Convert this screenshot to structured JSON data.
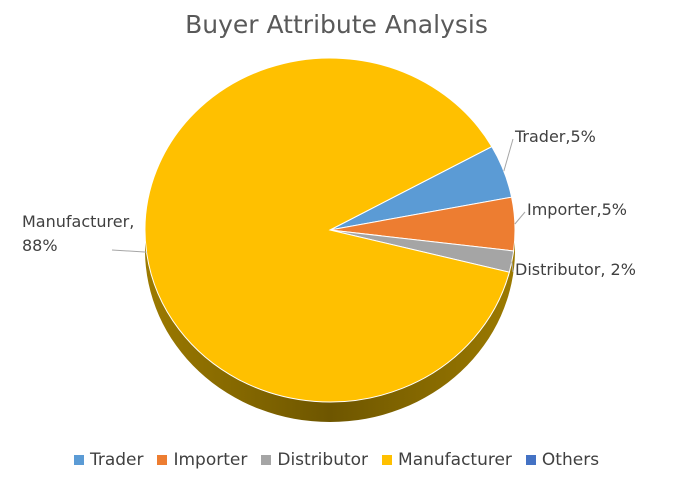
{
  "chart_data": {
    "type": "pie",
    "title": "Buyer Attribute Analysis",
    "categories": [
      "Trader",
      "Importer",
      "Distributor",
      "Manufacturer",
      "Others"
    ],
    "values": [
      5,
      5,
      2,
      88,
      0
    ],
    "value_labels": [
      "Trader,5%",
      "Importer,5%",
      "Distributor, 2%",
      "Manufacturer,\n88%",
      null
    ],
    "colors": [
      "#5b9bd5",
      "#ed7d31",
      "#a5a5a5",
      "#ffc000",
      "#4472c4"
    ]
  }
}
